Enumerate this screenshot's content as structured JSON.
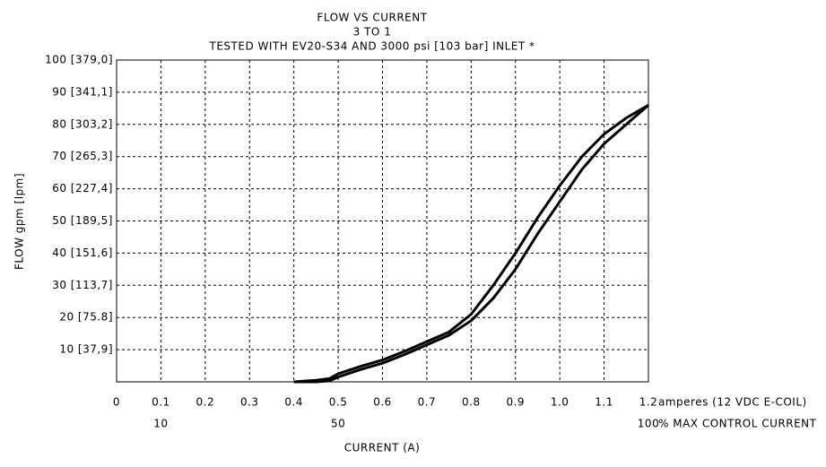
{
  "chart_data": {
    "type": "line",
    "title": "FLOW VS CURRENT",
    "subtitle": "3 TO 1",
    "note": "TESTED WITH EV20-S34 AND 3000 psi [103 bar] INLET *",
    "xlabel": "CURRENT (A)",
    "ylabel": "FLOW gpm [lpm]",
    "x_unit_label": "amperes (12 VDC E-COIL)",
    "x2_label": "% MAX CONTROL CURRENT",
    "x": [
      0.4,
      0.45,
      0.48,
      0.5,
      0.55,
      0.6,
      0.65,
      0.7,
      0.75,
      0.8,
      0.85,
      0.9,
      0.95,
      1.0,
      1.05,
      1.1,
      1.15,
      1.2
    ],
    "series": [
      {
        "color": "#000000",
        "values": [
          0,
          0.5,
          1,
          2.5,
          4.8,
          6.8,
          9.5,
          12.5,
          15.5,
          21,
          30,
          40,
          51,
          61,
          70,
          77,
          82,
          86
        ]
      },
      {
        "color": "#000000",
        "values": [
          0,
          0,
          0.3,
          1.5,
          3.8,
          5.8,
          8.5,
          11.5,
          14.5,
          19,
          26,
          35,
          46,
          56,
          66,
          74,
          80,
          86
        ]
      }
    ],
    "xlim": [
      0,
      1.2
    ],
    "ylim": [
      0,
      100
    ],
    "xticks": [
      0,
      0.1,
      0.2,
      0.3,
      0.4,
      0.5,
      0.6,
      0.7,
      0.8,
      0.9,
      {
        "value": 1,
        "label": "1.0"
      },
      1.1,
      1.2
    ],
    "x2ticks": [
      {
        "value": 0.1,
        "label": "10"
      },
      {
        "value": 0.5,
        "label": "50"
      },
      {
        "value": 1.2,
        "label": "100"
      }
    ],
    "yticks": [
      {
        "value": 10,
        "label": "10 [37,9]"
      },
      {
        "value": 20,
        "label": "20 [75.8]"
      },
      {
        "value": 30,
        "label": "30 [113,7]"
      },
      {
        "value": 40,
        "label": "40 [151,6]"
      },
      {
        "value": 50,
        "label": "50 [189,5]"
      },
      {
        "value": 60,
        "label": "60 [227,4]"
      },
      {
        "value": 70,
        "label": "70 [265,3]"
      },
      {
        "value": 80,
        "label": "80 [303,2]"
      },
      {
        "value": 90,
        "label": "90 [341,1]"
      },
      {
        "value": 100,
        "label": "100 [379,0]"
      }
    ],
    "grid": true
  }
}
